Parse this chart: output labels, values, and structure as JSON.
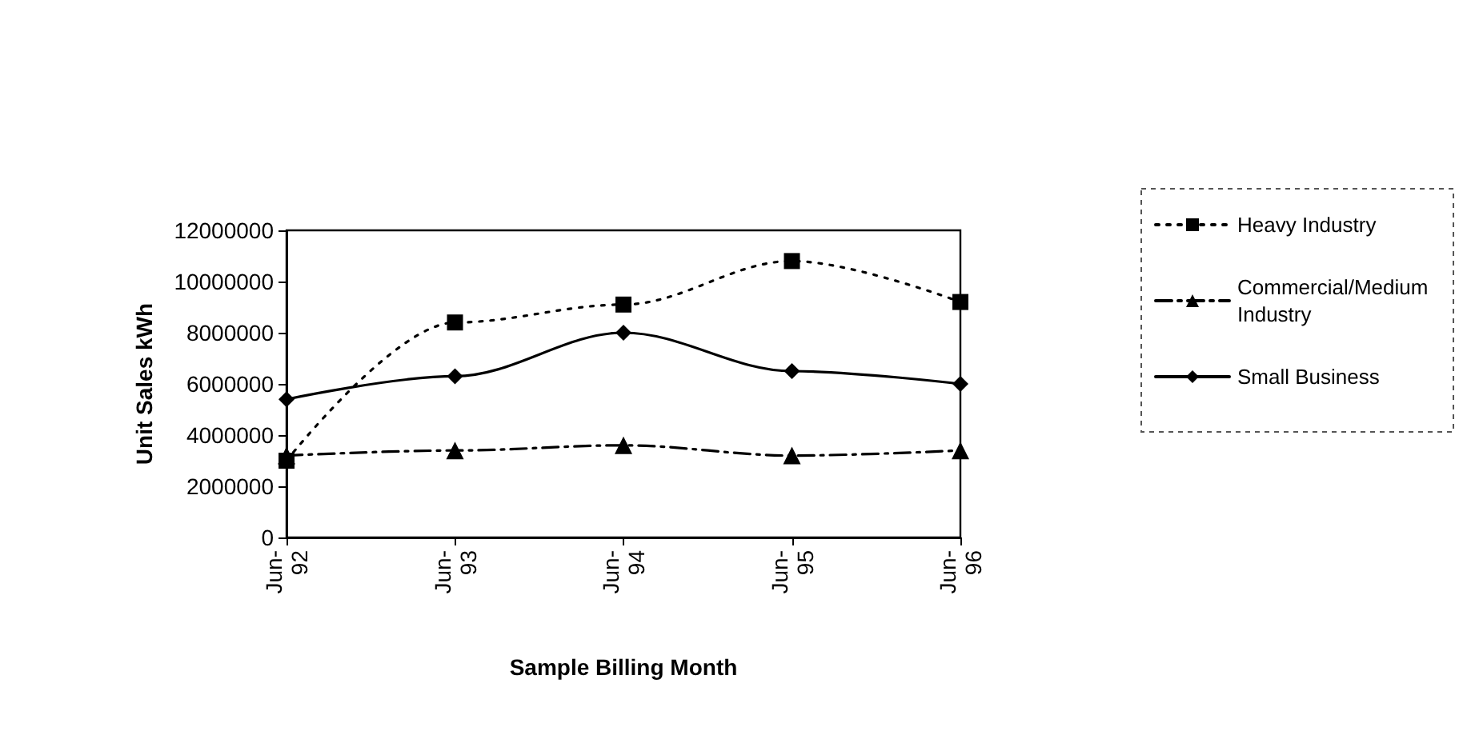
{
  "chart_data": {
    "type": "line",
    "xlabel": "Sample Billing Month",
    "ylabel": "Unit Sales kWh",
    "categories": [
      "Jun-92",
      "Jun-93",
      "Jun-94",
      "Jun-95",
      "Jun-96"
    ],
    "ylim": [
      0,
      12000000
    ],
    "yticks": [
      0,
      2000000,
      4000000,
      6000000,
      8000000,
      10000000,
      12000000
    ],
    "grid": false,
    "legend": "right",
    "series": [
      {
        "name": "Heavy Industry",
        "color": "#000000",
        "marker": "square",
        "line_style": "dotted",
        "values": [
          3000000,
          8400000,
          9100000,
          10800000,
          9200000
        ]
      },
      {
        "name": "Commercial/Medium Industry",
        "color": "#000000",
        "marker": "triangle",
        "line_style": "dashdot",
        "values": [
          3200000,
          3400000,
          3600000,
          3200000,
          3400000
        ]
      },
      {
        "name": "Small Business",
        "color": "#000000",
        "marker": "diamond",
        "line_style": "solid",
        "values": [
          5400000,
          6300000,
          8000000,
          6500000,
          6000000
        ]
      }
    ]
  }
}
